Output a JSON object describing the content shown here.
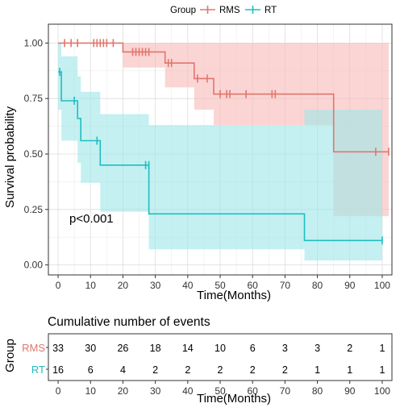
{
  "chart_data": [
    {
      "type": "line",
      "subtype": "kaplan-meier-survival",
      "xlabel": "Time(Months)",
      "ylabel": "Survival probability",
      "xlim": [
        -3,
        103
      ],
      "ylim": [
        -0.045,
        1.085
      ],
      "x_ticks": [
        0,
        10,
        20,
        30,
        40,
        50,
        60,
        70,
        80,
        90,
        100
      ],
      "y_ticks": [
        0,
        0.25,
        0.5,
        0.75,
        1.0
      ],
      "y_tick_labels": [
        "0.00",
        "0.25",
        "0.50",
        "0.75",
        "1.00"
      ],
      "grid": true,
      "legend": {
        "title": "Group",
        "position": "top",
        "entries": [
          "RMS",
          "RT"
        ]
      },
      "annotation": "p<0.001",
      "series": [
        {
          "name": "RMS",
          "color": "#E0766E",
          "ci_color": "#F8BCB8",
          "steps": [
            [
              0,
              1.0
            ],
            [
              20,
              0.96
            ],
            [
              33,
              0.91
            ],
            [
              42,
              0.84
            ],
            [
              48,
              0.77
            ],
            [
              85,
              0.51
            ],
            [
              102,
              0.51
            ]
          ],
          "ci": [
            [
              0,
              1.0,
              1.0
            ],
            [
              20,
              0.89,
              1.0
            ],
            [
              33,
              0.8,
              1.0
            ],
            [
              42,
              0.7,
              1.0
            ],
            [
              48,
              0.63,
              1.0
            ],
            [
              85,
              0.22,
              1.0
            ],
            [
              102,
              0.22,
              1.0
            ]
          ],
          "censored": [
            [
              2,
              1.0
            ],
            [
              4,
              1.0
            ],
            [
              6,
              1.0
            ],
            [
              11,
              1.0
            ],
            [
              12,
              1.0
            ],
            [
              13,
              1.0
            ],
            [
              14,
              1.0
            ],
            [
              15,
              1.0
            ],
            [
              17,
              1.0
            ],
            [
              23,
              0.96
            ],
            [
              24,
              0.96
            ],
            [
              25,
              0.96
            ],
            [
              26,
              0.96
            ],
            [
              27,
              0.96
            ],
            [
              28,
              0.96
            ],
            [
              34,
              0.91
            ],
            [
              35,
              0.91
            ],
            [
              43,
              0.84
            ],
            [
              46,
              0.84
            ],
            [
              50,
              0.77
            ],
            [
              52,
              0.77
            ],
            [
              53,
              0.77
            ],
            [
              58,
              0.77
            ],
            [
              66,
              0.77
            ],
            [
              67,
              0.77
            ],
            [
              98,
              0.51
            ],
            [
              102,
              0.51
            ]
          ]
        },
        {
          "name": "RT",
          "color": "#1FBDC2",
          "ci_color": "#9FE6E8",
          "steps": [
            [
              0,
              0.87
            ],
            [
              1,
              0.74
            ],
            [
              6,
              0.66
            ],
            [
              7,
              0.56
            ],
            [
              13,
              0.45
            ],
            [
              28,
              0.23
            ],
            [
              76,
              0.11
            ],
            [
              100,
              0.11
            ]
          ],
          "ci": [
            [
              0,
              0.7,
              1.0
            ],
            [
              1,
              0.56,
              0.94
            ],
            [
              6,
              0.46,
              0.85
            ],
            [
              7,
              0.37,
              0.78
            ],
            [
              13,
              0.24,
              0.68
            ],
            [
              28,
              0.07,
              0.63
            ],
            [
              76,
              0.02,
              0.7
            ],
            [
              100,
              0.02,
              0.7
            ]
          ],
          "censored": [
            [
              0.5,
              0.87
            ],
            [
              5,
              0.74
            ],
            [
              12,
              0.56
            ],
            [
              27,
              0.45
            ],
            [
              28,
              0.45
            ],
            [
              100,
              0.11
            ]
          ]
        }
      ]
    },
    {
      "type": "table",
      "title": "Cumulative number of events",
      "xlabel": "Time(Months)",
      "ylabel": "Group",
      "x_ticks": [
        0,
        10,
        20,
        30,
        40,
        50,
        60,
        70,
        80,
        90,
        100
      ],
      "rows": [
        {
          "name": "RMS",
          "color": "#E0766E",
          "values": [
            33,
            30,
            26,
            18,
            14,
            10,
            6,
            3,
            3,
            2,
            1
          ]
        },
        {
          "name": "RT",
          "color": "#1FBDC2",
          "values": [
            16,
            6,
            4,
            2,
            2,
            2,
            2,
            2,
            1,
            1,
            1
          ]
        }
      ]
    }
  ]
}
